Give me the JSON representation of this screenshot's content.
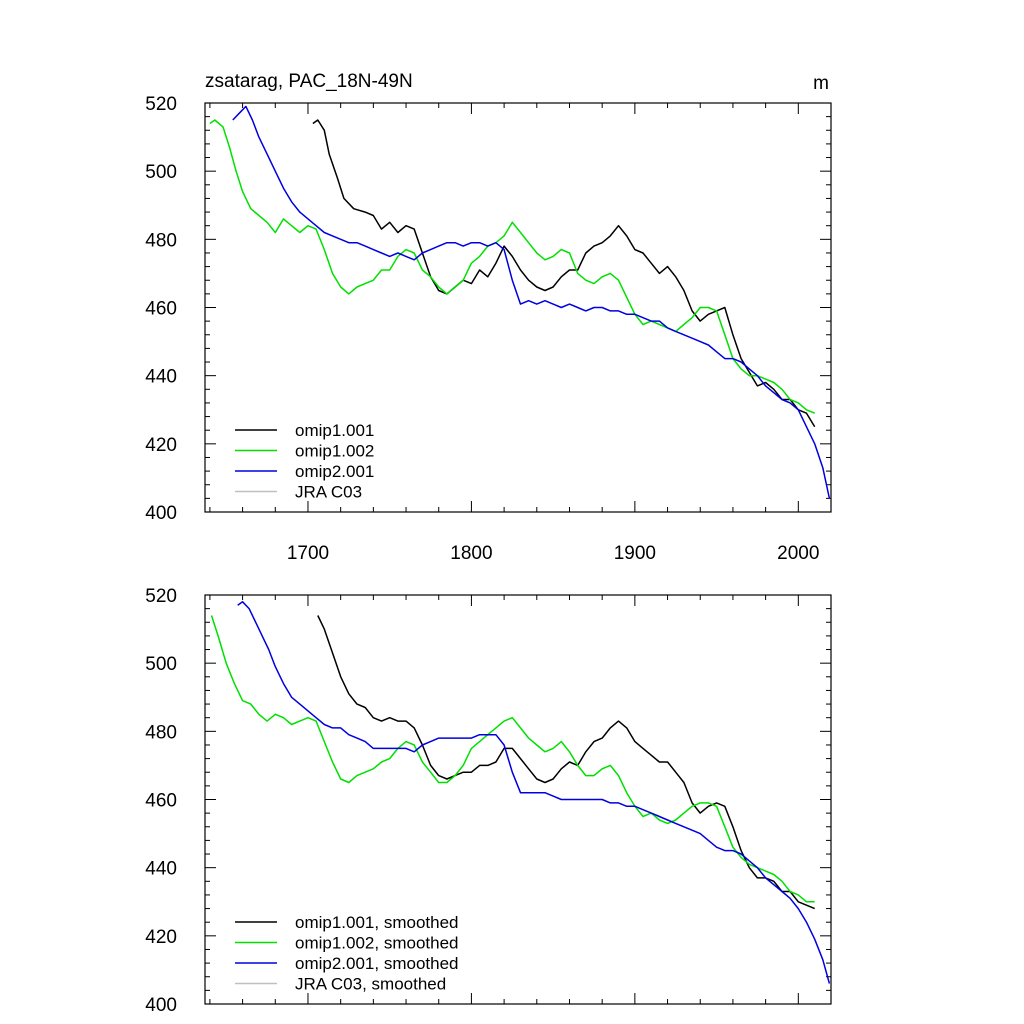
{
  "chart_data": [
    {
      "type": "line",
      "title": "zsatarag, PAC_18N-49N",
      "units": "m",
      "xlabel": "",
      "ylabel": "",
      "xlim": [
        1637,
        2020
      ],
      "ylim": [
        400,
        520
      ],
      "xticks": [
        1700,
        1800,
        1900,
        2000
      ],
      "yticks": [
        400,
        420,
        440,
        460,
        480,
        500,
        520
      ],
      "xtick_labels": [
        "1700",
        "1800",
        "1900",
        "2000"
      ],
      "ytick_labels": [
        "400",
        "420",
        "440",
        "460",
        "480",
        "500",
        "520"
      ],
      "legend_position": "bottom-left",
      "series": [
        {
          "name": "omip1.001",
          "color": "#000000",
          "x": [
            1703,
            1706,
            1710,
            1713,
            1718,
            1722,
            1728,
            1735,
            1740,
            1745,
            1750,
            1755,
            1760,
            1765,
            1770,
            1775,
            1780,
            1785,
            1790,
            1795,
            1800,
            1805,
            1810,
            1815,
            1820,
            1825,
            1830,
            1835,
            1840,
            1845,
            1850,
            1855,
            1860,
            1865,
            1870,
            1875,
            1880,
            1885,
            1890,
            1895,
            1900,
            1905,
            1910,
            1915,
            1920,
            1925,
            1930,
            1935,
            1940,
            1945,
            1950,
            1955,
            1960,
            1965,
            1970,
            1975,
            1980,
            1985,
            1990,
            1995,
            2000,
            2005,
            2010
          ],
          "y": [
            514,
            515,
            512,
            505,
            498,
            492,
            489,
            488,
            487,
            483,
            485,
            482,
            484,
            483,
            476,
            469,
            465,
            464,
            466,
            468,
            467,
            471,
            469,
            473,
            478,
            475,
            471,
            468,
            466,
            465,
            466,
            469,
            471,
            471,
            476,
            478,
            479,
            481,
            484,
            481,
            477,
            476,
            473,
            470,
            472,
            469,
            465,
            459,
            456,
            458,
            459,
            460,
            452,
            445,
            441,
            437,
            438,
            436,
            433,
            433,
            430,
            429,
            425
          ]
        },
        {
          "name": "omip1.002",
          "color": "#00e000",
          "x": [
            1640,
            1643,
            1648,
            1652,
            1656,
            1660,
            1665,
            1670,
            1675,
            1680,
            1685,
            1690,
            1695,
            1700,
            1705,
            1710,
            1715,
            1720,
            1725,
            1730,
            1735,
            1740,
            1745,
            1750,
            1755,
            1760,
            1765,
            1770,
            1775,
            1780,
            1785,
            1790,
            1795,
            1800,
            1805,
            1810,
            1815,
            1820,
            1825,
            1830,
            1835,
            1840,
            1845,
            1850,
            1855,
            1860,
            1865,
            1870,
            1875,
            1880,
            1885,
            1890,
            1895,
            1900,
            1905,
            1910,
            1915,
            1920,
            1925,
            1930,
            1935,
            1940,
            1945,
            1950,
            1955,
            1960,
            1965,
            1970,
            1975,
            1980,
            1985,
            1990,
            1995,
            2000,
            2005,
            2010
          ],
          "y": [
            514,
            515,
            513,
            507,
            500,
            494,
            489,
            487,
            485,
            482,
            486,
            484,
            482,
            484,
            483,
            477,
            470,
            466,
            464,
            466,
            467,
            468,
            471,
            471,
            475,
            477,
            476,
            471,
            469,
            466,
            464,
            466,
            468,
            473,
            475,
            478,
            479,
            481,
            485,
            482,
            479,
            476,
            474,
            475,
            477,
            476,
            470,
            468,
            467,
            469,
            470,
            468,
            463,
            458,
            455,
            456,
            455,
            454,
            453,
            455,
            457,
            460,
            460,
            459,
            452,
            445,
            442,
            440,
            440,
            439,
            438,
            436,
            433,
            432,
            430,
            429
          ]
        },
        {
          "name": "omip2.001",
          "color": "#0000e0",
          "x": [
            1654,
            1658,
            1662,
            1666,
            1670,
            1675,
            1680,
            1685,
            1690,
            1695,
            1700,
            1705,
            1710,
            1715,
            1720,
            1725,
            1730,
            1735,
            1740,
            1745,
            1750,
            1755,
            1760,
            1765,
            1770,
            1775,
            1780,
            1785,
            1790,
            1795,
            1800,
            1805,
            1810,
            1815,
            1820,
            1825,
            1830,
            1835,
            1840,
            1845,
            1850,
            1855,
            1860,
            1865,
            1870,
            1875,
            1880,
            1885,
            1890,
            1895,
            1900,
            1905,
            1910,
            1915,
            1920,
            1925,
            1930,
            1935,
            1940,
            1945,
            1950,
            1955,
            1960,
            1965,
            1970,
            1975,
            1980,
            1985,
            1990,
            1995,
            2000,
            2005,
            2010,
            2015,
            2019
          ],
          "y": [
            515,
            517,
            519,
            515,
            510,
            505,
            500,
            495,
            491,
            488,
            486,
            484,
            482,
            481,
            480,
            479,
            479,
            478,
            477,
            476,
            475,
            476,
            475,
            474,
            476,
            477,
            478,
            479,
            479,
            478,
            479,
            479,
            478,
            479,
            477,
            468,
            461,
            462,
            461,
            462,
            461,
            460,
            461,
            460,
            459,
            460,
            460,
            459,
            459,
            458,
            458,
            457,
            456,
            456,
            454,
            453,
            452,
            451,
            450,
            449,
            447,
            445,
            445,
            444,
            442,
            440,
            437,
            435,
            433,
            432,
            430,
            425,
            420,
            413,
            404
          ]
        },
        {
          "name": "JRA C03",
          "color": "#c0c0c0",
          "x": [],
          "y": []
        }
      ]
    },
    {
      "type": "line",
      "title": "",
      "xlabel": "",
      "ylabel": "",
      "xlim": [
        1637,
        2020
      ],
      "ylim": [
        400,
        520
      ],
      "xticks": [
        1700,
        1800,
        1900,
        2000
      ],
      "yticks": [
        400,
        420,
        440,
        460,
        480,
        500,
        520
      ],
      "xtick_labels": [],
      "ytick_labels": [
        "400",
        "420",
        "440",
        "460",
        "480",
        "500",
        "520"
      ],
      "legend_position": "bottom-left",
      "series": [
        {
          "name": "omip1.001, smoothed",
          "color": "#000000",
          "x": [
            1706,
            1710,
            1715,
            1720,
            1725,
            1730,
            1735,
            1740,
            1745,
            1750,
            1755,
            1760,
            1765,
            1770,
            1775,
            1780,
            1785,
            1790,
            1795,
            1800,
            1805,
            1810,
            1815,
            1820,
            1825,
            1830,
            1835,
            1840,
            1845,
            1850,
            1855,
            1860,
            1865,
            1870,
            1875,
            1880,
            1885,
            1890,
            1895,
            1900,
            1905,
            1910,
            1915,
            1920,
            1925,
            1930,
            1935,
            1940,
            1945,
            1950,
            1955,
            1960,
            1965,
            1970,
            1975,
            1980,
            1985,
            1990,
            1995,
            2000,
            2005,
            2010
          ],
          "y": [
            514,
            510,
            503,
            496,
            491,
            488,
            487,
            484,
            483,
            484,
            483,
            483,
            481,
            476,
            470,
            467,
            466,
            467,
            468,
            468,
            470,
            470,
            471,
            475,
            475,
            472,
            469,
            466,
            465,
            466,
            469,
            471,
            470,
            474,
            477,
            478,
            481,
            483,
            481,
            477,
            475,
            473,
            471,
            471,
            468,
            465,
            459,
            456,
            458,
            459,
            458,
            452,
            445,
            440,
            437,
            437,
            436,
            433,
            433,
            430,
            429,
            428
          ]
        },
        {
          "name": "omip1.002, smoothed",
          "color": "#00e000",
          "x": [
            1641,
            1645,
            1650,
            1655,
            1660,
            1665,
            1670,
            1675,
            1680,
            1685,
            1690,
            1695,
            1700,
            1705,
            1710,
            1715,
            1720,
            1725,
            1730,
            1735,
            1740,
            1745,
            1750,
            1755,
            1760,
            1765,
            1770,
            1775,
            1780,
            1785,
            1790,
            1795,
            1800,
            1805,
            1810,
            1815,
            1820,
            1825,
            1830,
            1835,
            1840,
            1845,
            1850,
            1855,
            1860,
            1865,
            1870,
            1875,
            1880,
            1885,
            1890,
            1895,
            1900,
            1905,
            1910,
            1915,
            1920,
            1925,
            1930,
            1935,
            1940,
            1945,
            1950,
            1955,
            1960,
            1965,
            1970,
            1975,
            1980,
            1985,
            1990,
            1995,
            2000,
            2005,
            2010
          ],
          "y": [
            514,
            508,
            500,
            494,
            489,
            488,
            485,
            483,
            485,
            484,
            482,
            483,
            484,
            483,
            477,
            471,
            466,
            465,
            467,
            468,
            469,
            471,
            472,
            475,
            477,
            476,
            471,
            468,
            465,
            465,
            467,
            470,
            475,
            477,
            479,
            481,
            483,
            484,
            481,
            478,
            476,
            474,
            475,
            477,
            474,
            470,
            467,
            467,
            469,
            470,
            467,
            462,
            458,
            455,
            456,
            454,
            453,
            454,
            456,
            458,
            459,
            459,
            458,
            452,
            446,
            443,
            441,
            440,
            439,
            438,
            436,
            433,
            432,
            430,
            430
          ]
        },
        {
          "name": "omip2.001, smoothed",
          "color": "#0000e0",
          "x": [
            1657,
            1660,
            1664,
            1668,
            1672,
            1676,
            1680,
            1685,
            1690,
            1695,
            1700,
            1705,
            1710,
            1715,
            1720,
            1725,
            1730,
            1735,
            1740,
            1745,
            1750,
            1755,
            1760,
            1765,
            1770,
            1775,
            1780,
            1785,
            1790,
            1795,
            1800,
            1805,
            1810,
            1815,
            1820,
            1825,
            1830,
            1835,
            1840,
            1845,
            1850,
            1855,
            1860,
            1865,
            1870,
            1875,
            1880,
            1885,
            1890,
            1895,
            1900,
            1905,
            1910,
            1915,
            1920,
            1925,
            1930,
            1935,
            1940,
            1945,
            1950,
            1955,
            1960,
            1965,
            1970,
            1975,
            1980,
            1985,
            1990,
            1995,
            2000,
            2005,
            2010,
            2015,
            2019
          ],
          "y": [
            517,
            518,
            516,
            512,
            508,
            504,
            499,
            494,
            490,
            488,
            486,
            484,
            482,
            481,
            481,
            479,
            478,
            477,
            475,
            475,
            475,
            475,
            475,
            474,
            476,
            477,
            478,
            478,
            478,
            478,
            478,
            479,
            479,
            479,
            476,
            468,
            462,
            462,
            462,
            462,
            461,
            460,
            460,
            460,
            460,
            460,
            460,
            459,
            459,
            458,
            458,
            457,
            456,
            455,
            454,
            453,
            452,
            451,
            450,
            448,
            446,
            445,
            445,
            444,
            442,
            440,
            437,
            435,
            433,
            431,
            428,
            424,
            419,
            413,
            406
          ]
        },
        {
          "name": "JRA C03, smoothed",
          "color": "#c0c0c0",
          "x": [],
          "y": []
        }
      ]
    }
  ]
}
